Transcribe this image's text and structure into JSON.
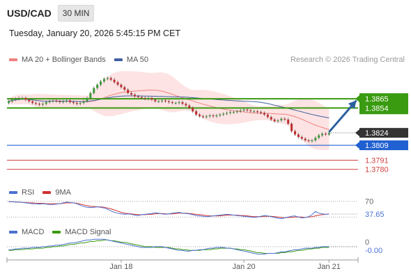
{
  "header": {
    "pair": "USD/CAD",
    "timeframe": "30 MIN",
    "datetime": "Tuesday, January 20, 2026 5:45:15 PM CET",
    "credit": "Research © 2026 Trading Central"
  },
  "legend": {
    "ma20": "MA 20 + Bollinger Bands",
    "ma50": "MA 50",
    "rsi": "RSI",
    "rsi_ma": "9MA",
    "macd": "MACD",
    "macd_signal": "MACD Signal"
  },
  "colors": {
    "bull_candle": "#3a9a3a",
    "bear_candle": "#c03030",
    "ma20": "#f08080",
    "ma50": "#4060a0",
    "bollinger_fill": "#fcd9d9",
    "resistance": "#3a9a10",
    "support": "#d04040",
    "pivot": "#2060d0",
    "current_price": "#333333",
    "arrow": "#2b5f9e",
    "rsi": "#4a70d0",
    "rsi_ma": "#d03030",
    "macd": "#4a70d0",
    "macd_signal": "#3a9a10"
  },
  "chart_data": {
    "type": "candlestick",
    "main": {
      "ylim": [
        1.3768,
        1.3902
      ],
      "resistances": [
        1.3865,
        1.3854
      ],
      "pivot": 1.3809,
      "current": 1.3824,
      "supports": [
        1.3791,
        1.378
      ],
      "price_labels": [
        "1.3865",
        "1.3854",
        "1.3824",
        "1.3809",
        "1.3791",
        "1.3780"
      ],
      "arrow": {
        "from_index": 94,
        "from_price": 1.3825,
        "to_index": 102,
        "to_price": 1.3863
      },
      "close": [
        1.3862,
        1.3864,
        1.3865,
        1.3866,
        1.3866,
        1.3864,
        1.3862,
        1.386,
        1.3859,
        1.3858,
        1.3859,
        1.3861,
        1.3862,
        1.3863,
        1.3862,
        1.3861,
        1.3862,
        1.3863,
        1.3861,
        1.386,
        1.3859,
        1.386,
        1.3862,
        1.3866,
        1.3872,
        1.3878,
        1.3882,
        1.3886,
        1.3889,
        1.389,
        1.3888,
        1.3885,
        1.3882,
        1.3879,
        1.3876,
        1.3872,
        1.387,
        1.3868,
        1.3867,
        1.3866,
        1.3865,
        1.3866,
        1.3864,
        1.3862,
        1.3862,
        1.3863,
        1.3862,
        1.3861,
        1.386,
        1.386,
        1.3861,
        1.3859,
        1.3857,
        1.3854,
        1.385,
        1.3846,
        1.3844,
        1.3843,
        1.3844,
        1.3845,
        1.3844,
        1.3845,
        1.3846,
        1.3847,
        1.3848,
        1.3849,
        1.3849,
        1.385,
        1.3851,
        1.3852,
        1.3851,
        1.385,
        1.385,
        1.3849,
        1.3848,
        1.3846,
        1.3843,
        1.384,
        1.3838,
        1.3839,
        1.3841,
        1.384,
        1.3835,
        1.3826,
        1.3822,
        1.3819,
        1.3817,
        1.3815,
        1.3814,
        1.3815,
        1.3818,
        1.3821,
        1.3823,
        1.3822,
        1.3824
      ],
      "x_ticks": [
        {
          "index": 33,
          "label": "Jan 18"
        },
        {
          "index": 69,
          "label": "Jan 20"
        },
        {
          "index": 94,
          "label": "Jan 21"
        }
      ],
      "n_slots": 103
    },
    "rsi": {
      "ylim": [
        20,
        80
      ],
      "levels": [
        70,
        30
      ],
      "labels": [
        "70",
        "37.65"
      ],
      "rsi": [
        70,
        69,
        68,
        68,
        67,
        66,
        65,
        64,
        64,
        63,
        64,
        63,
        62,
        62,
        63,
        64,
        66,
        68,
        67,
        66,
        64,
        60,
        57,
        55,
        54,
        55,
        56,
        55,
        53,
        50,
        46,
        42,
        40,
        38,
        37,
        38,
        37,
        35,
        34,
        36,
        37,
        38,
        39,
        41,
        40,
        38,
        37,
        38,
        40,
        41,
        42,
        40,
        39,
        38,
        36,
        34,
        33,
        32,
        31,
        32,
        33,
        34,
        35,
        36,
        37,
        36,
        35,
        34,
        33,
        32,
        31,
        30,
        29,
        30,
        32,
        34,
        33,
        31,
        29,
        27,
        26,
        28,
        30,
        32,
        33,
        30,
        28,
        29,
        31,
        36,
        44,
        40,
        38,
        37,
        37.65
      ],
      "rsi_ma": [
        69,
        69,
        68,
        68,
        67,
        67,
        66,
        66,
        65,
        65,
        65,
        64,
        64,
        64,
        64,
        64,
        65,
        66,
        66,
        66,
        65,
        63,
        61,
        59,
        57,
        57,
        56,
        56,
        55,
        53,
        51,
        48,
        45,
        42,
        40,
        39,
        38,
        37,
        36,
        36,
        36,
        37,
        37,
        38,
        39,
        39,
        38,
        38,
        38,
        39,
        40,
        40,
        40,
        39,
        38,
        37,
        36,
        35,
        34,
        33,
        33,
        33,
        33,
        34,
        35,
        35,
        35,
        35,
        34,
        34,
        33,
        32,
        31,
        31,
        31,
        32,
        32,
        32,
        31,
        30,
        29,
        28,
        29,
        29,
        30,
        30,
        30,
        29,
        30,
        31,
        33,
        35,
        36,
        37,
        38
      ]
    },
    "macd": {
      "ylim": [
        -0.0016,
        0.0014
      ],
      "zero_label": "0",
      "last_label": "-0.00",
      "macd": [
        -0.0004,
        -0.0004,
        -0.0003,
        -0.0003,
        -0.0002,
        -0.0002,
        -0.0002,
        -0.0001,
        -0.0001,
        -0.0001,
        0,
        0,
        0.0001,
        0.0001,
        0.0002,
        0.0002,
        0.0003,
        0.0004,
        0.0005,
        0.0005,
        0.0006,
        0.0007,
        0.0008,
        0.0009,
        0.0009,
        0.001,
        0.001,
        0.001,
        0.001,
        0.0009,
        0.0008,
        0.0007,
        0.0006,
        0.0005,
        0.0004,
        0.0003,
        0.0002,
        0.0001,
        0,
        -0.0001,
        -0.0001,
        -0.0001,
        -0.0001,
        0,
        0,
        0,
        -0.0001,
        -0.0002,
        -0.0003,
        -0.0004,
        -0.0005,
        -0.0005,
        -0.0006,
        -0.0006,
        -0.0005,
        -0.0005,
        -0.0004,
        -0.0004,
        -0.0003,
        -0.0002,
        -0.0002,
        -0.0001,
        -0.0001,
        -0.0001,
        -0.0002,
        -0.0002,
        -0.0003,
        -0.0004,
        -0.0005,
        -0.0006,
        -0.0007,
        -0.0008,
        -0.0009,
        -0.001,
        -0.001,
        -0.001,
        -0.0009,
        -0.0009,
        -0.0009,
        -0.0008,
        -0.0007,
        -0.0007,
        -0.0006,
        -0.0005,
        -0.0004,
        -0.0004,
        -0.0003,
        -0.0002,
        -0.0002,
        -0.0002,
        -0.0001,
        -0.0001,
        0,
        0,
        0
      ],
      "signal": [
        -0.0005,
        -0.0005,
        -0.0004,
        -0.0004,
        -0.0004,
        -0.0003,
        -0.0003,
        -0.0003,
        -0.0002,
        -0.0002,
        -0.0002,
        -0.0001,
        -0.0001,
        0,
        0,
        0.0001,
        0.0001,
        0.0002,
        0.0003,
        0.0003,
        0.0004,
        0.0005,
        0.0005,
        0.0006,
        0.0007,
        0.0007,
        0.0008,
        0.0008,
        0.0009,
        0.0009,
        0.0008,
        0.0008,
        0.0007,
        0.0006,
        0.0006,
        0.0005,
        0.0004,
        0.0003,
        0.0002,
        0.0001,
        0,
        0,
        0,
        -0.0001,
        -0.0001,
        -0.0001,
        -0.0001,
        -0.0001,
        -0.0002,
        -0.0003,
        -0.0003,
        -0.0004,
        -0.0004,
        -0.0005,
        -0.0005,
        -0.0005,
        -0.0005,
        -0.0004,
        -0.0004,
        -0.0004,
        -0.0003,
        -0.0003,
        -0.0002,
        -0.0002,
        -0.0002,
        -0.0002,
        -0.0003,
        -0.0003,
        -0.0004,
        -0.0004,
        -0.0005,
        -0.0006,
        -0.0007,
        -0.0008,
        -0.0008,
        -0.0009,
        -0.0009,
        -0.0009,
        -0.0009,
        -0.0009,
        -0.0008,
        -0.0008,
        -0.0007,
        -0.0007,
        -0.0006,
        -0.0005,
        -0.0005,
        -0.0004,
        -0.0003,
        -0.0003,
        -0.0002,
        -0.0002,
        -0.0001,
        -0.0001,
        -0.0001
      ]
    }
  }
}
